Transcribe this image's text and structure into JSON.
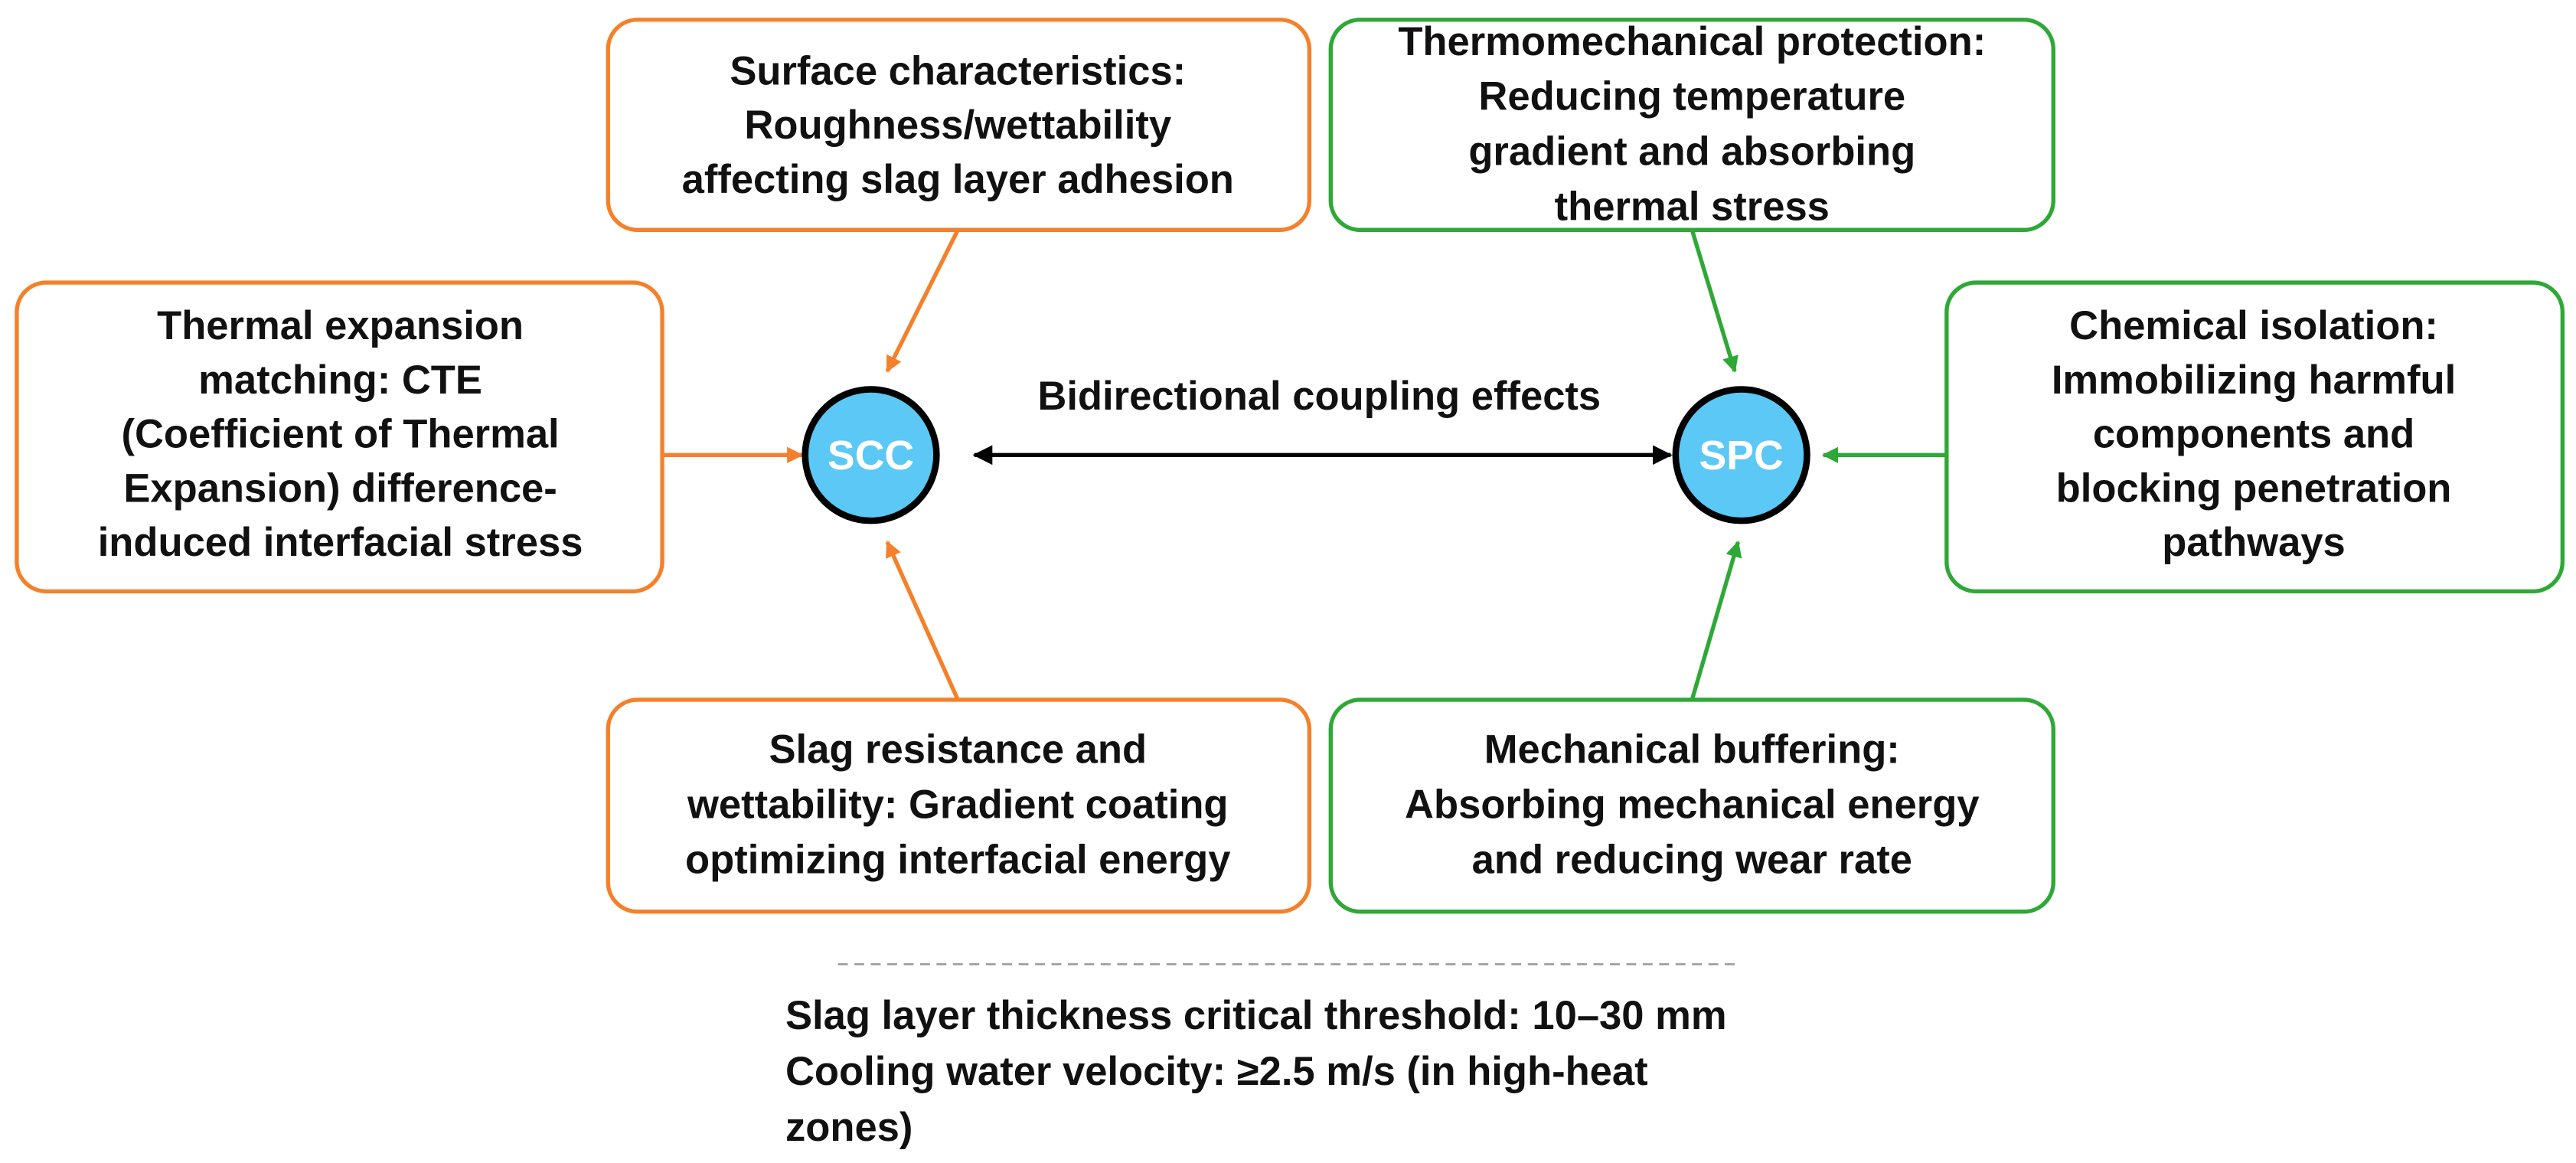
{
  "center_label": "Bidirectional coupling effects",
  "nodes": [
    {
      "label": "SCC"
    },
    {
      "label": "SPC"
    }
  ],
  "boxes": [
    {
      "lines": [
        "Surface characteristics:",
        "Roughness/wettability",
        "affecting slag layer adhesion"
      ]
    },
    {
      "lines": [
        "Thermal expansion",
        "matching: CTE",
        "(Coefficient of Thermal",
        "Expansion) difference-",
        "induced interfacial stress"
      ]
    },
    {
      "lines": [
        "Slag resistance and",
        "wettability: Gradient coating",
        "optimizing interfacial energy"
      ]
    },
    {
      "lines": [
        "Thermomechanical protection:",
        "Reducing temperature",
        "gradient and absorbing",
        "thermal stress"
      ]
    },
    {
      "lines": [
        "Chemical isolation:",
        "Immobilizing harmful",
        "components and",
        "blocking penetration",
        "pathways"
      ]
    },
    {
      "lines": [
        "Mechanical buffering:",
        "Absorbing mechanical energy",
        "and reducing wear rate"
      ]
    }
  ],
  "notes": [
    "Slag layer thickness critical threshold: 10–30 mm",
    "Cooling water velocity: ≥2.5 m/s (in high-heat",
    "zones)"
  ]
}
